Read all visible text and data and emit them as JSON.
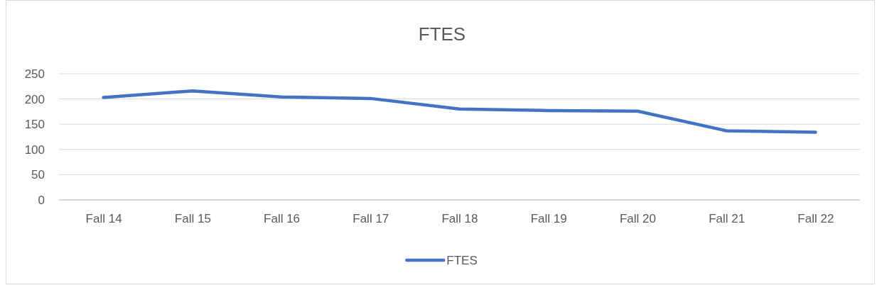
{
  "chart_data": {
    "type": "line",
    "title": "FTES",
    "categories": [
      "Fall 14",
      "Fall 15",
      "Fall 16",
      "Fall 17",
      "Fall 18",
      "Fall 19",
      "Fall 20",
      "Fall 21",
      "Fall 22"
    ],
    "series": [
      {
        "name": "FTES",
        "color": "#4472c4",
        "values": [
          203,
          216,
          204,
          201,
          180,
          177,
          176,
          137,
          134
        ]
      }
    ],
    "ylim": [
      0,
      250
    ],
    "yticks": [
      0,
      50,
      100,
      150,
      200,
      250
    ],
    "grid": "y",
    "legend": "bottom",
    "marker": "none",
    "line_style": "solid"
  }
}
